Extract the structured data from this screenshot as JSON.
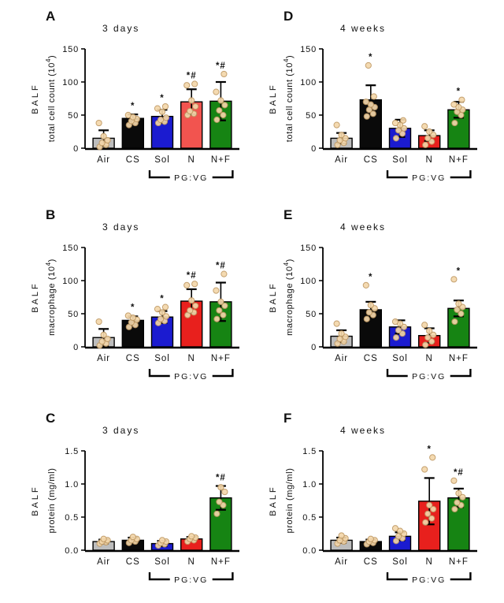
{
  "figure": {
    "background": "#ffffff",
    "point_style": {
      "fill": "#f4d7ab",
      "stroke": "#bf9963"
    },
    "axis_color": "#000000",
    "group_labels": [
      "Air",
      "CS",
      "Sol",
      "N",
      "N+F"
    ]
  },
  "chart_data": [
    {
      "panel_label": "A",
      "type": "bar",
      "title": "3 days",
      "ylabel_line1": "BALF",
      "ylabel_line2": "total cell count (10",
      "ylabel_sup": "4",
      "ylabel_end": ")",
      "ylim": [
        0,
        150
      ],
      "ytick_values": [
        0,
        50,
        100,
        150
      ],
      "ytick_labels": [
        "0",
        "50",
        "100",
        "150"
      ],
      "categories": [
        "Air",
        "CS",
        "Sol",
        "N",
        "N+F"
      ],
      "group_bracket": {
        "label": "PG:VG",
        "from_index": 2,
        "to_index": 4
      },
      "bars": [
        {
          "category": "Air",
          "value": 15,
          "sd": 12,
          "color": "#bdbdbd",
          "sig": "",
          "points": [
            2,
            5,
            8,
            12,
            18,
            38
          ]
        },
        {
          "category": "CS",
          "value": 45,
          "sd": 6,
          "color": "#0a0a0a",
          "sig": "*",
          "points": [
            35,
            38,
            41,
            44,
            47,
            50
          ]
        },
        {
          "category": "Sol",
          "value": 48,
          "sd": 10,
          "color": "#1b1bd0",
          "sig": "*",
          "points": [
            38,
            40,
            43,
            46,
            55,
            60,
            63
          ]
        },
        {
          "category": "N",
          "value": 70,
          "sd": 19,
          "color": "#f2544f",
          "sig": "*#",
          "points": [
            50,
            52,
            56,
            63,
            72,
            95,
            97
          ]
        },
        {
          "category": "N+F",
          "value": 71,
          "sd": 29,
          "color": "#168413",
          "sig": "*#",
          "points": [
            43,
            50,
            57,
            65,
            72,
            85,
            112
          ]
        }
      ]
    },
    {
      "panel_label": "B",
      "type": "bar",
      "title": "3 days",
      "ylabel_line1": "BALF",
      "ylabel_line2": "macrophage (10",
      "ylabel_sup": "4",
      "ylabel_end": ")",
      "ylim": [
        0,
        150
      ],
      "ytick_values": [
        0,
        50,
        100,
        150
      ],
      "ytick_labels": [
        "0",
        "50",
        "100",
        "150"
      ],
      "categories": [
        "Air",
        "CS",
        "Sol",
        "N",
        "N+F"
      ],
      "group_bracket": {
        "label": "PG:VG",
        "from_index": 2,
        "to_index": 4
      },
      "bars": [
        {
          "category": "Air",
          "value": 14,
          "sd": 13,
          "color": "#bdbdbd",
          "sig": "",
          "points": [
            2,
            5,
            8,
            12,
            18,
            38
          ]
        },
        {
          "category": "CS",
          "value": 40,
          "sd": 6,
          "color": "#0a0a0a",
          "sig": "*",
          "points": [
            30,
            33,
            37,
            41,
            44,
            47
          ]
        },
        {
          "category": "Sol",
          "value": 45,
          "sd": 9,
          "color": "#1b1bd0",
          "sig": "*",
          "points": [
            36,
            39,
            42,
            46,
            52,
            57,
            60
          ]
        },
        {
          "category": "N",
          "value": 69,
          "sd": 18,
          "color": "#e8201d",
          "sig": "*#",
          "points": [
            48,
            52,
            55,
            62,
            70,
            93,
            95
          ]
        },
        {
          "category": "N+F",
          "value": 68,
          "sd": 29,
          "color": "#168413",
          "sig": "*#",
          "points": [
            42,
            48,
            55,
            62,
            68,
            85,
            110
          ]
        }
      ]
    },
    {
      "panel_label": "C",
      "type": "bar",
      "title": "3 days",
      "ylabel_line1": "BALF",
      "ylabel_line2": "protein (mg/ml)",
      "ylabel_sup": "",
      "ylabel_end": "",
      "ylim": [
        0,
        1.5
      ],
      "ytick_values": [
        0,
        0.5,
        1.0,
        1.5
      ],
      "ytick_labels": [
        "0.0",
        "0.5",
        "1.0",
        "1.5"
      ],
      "categories": [
        "Air",
        "CS",
        "Sol",
        "N",
        "N+F"
      ],
      "group_bracket": {
        "label": "PG:VG",
        "from_index": 2,
        "to_index": 4
      },
      "bars": [
        {
          "category": "Air",
          "value": 0.13,
          "sd": 0.03,
          "color": "#bdbdbd",
          "sig": "",
          "points": [
            0.1,
            0.12,
            0.13,
            0.15,
            0.17
          ]
        },
        {
          "category": "CS",
          "value": 0.15,
          "sd": 0.04,
          "color": "#0a0a0a",
          "sig": "",
          "points": [
            0.11,
            0.13,
            0.15,
            0.17,
            0.2
          ]
        },
        {
          "category": "Sol",
          "value": 0.1,
          "sd": 0.04,
          "color": "#1b1bd0",
          "sig": "",
          "points": [
            0.07,
            0.09,
            0.11,
            0.13,
            0.15
          ]
        },
        {
          "category": "N",
          "value": 0.17,
          "sd": 0.03,
          "color": "#e8201d",
          "sig": "",
          "points": [
            0.13,
            0.15,
            0.17,
            0.19,
            0.21
          ]
        },
        {
          "category": "N+F",
          "value": 0.79,
          "sd": 0.18,
          "color": "#168413",
          "sig": "*#",
          "points": [
            0.55,
            0.68,
            0.73,
            0.88,
            0.95
          ]
        }
      ]
    },
    {
      "panel_label": "D",
      "type": "bar",
      "title": "4 weeks",
      "ylabel_line1": "BALF",
      "ylabel_line2": "total cell count (10",
      "ylabel_sup": "4",
      "ylabel_end": ")",
      "ylim": [
        0,
        150
      ],
      "ytick_values": [
        0,
        50,
        100,
        150
      ],
      "ytick_labels": [
        "0",
        "50",
        "100",
        "150"
      ],
      "categories": [
        "Air",
        "CS",
        "Sol",
        "N",
        "N+F"
      ],
      "group_bracket": {
        "label": "PG:VG",
        "from_index": 2,
        "to_index": 4
      },
      "bars": [
        {
          "category": "Air",
          "value": 15,
          "sd": 8,
          "color": "#bdbdbd",
          "sig": "",
          "points": [
            5,
            8,
            12,
            15,
            20,
            35
          ]
        },
        {
          "category": "CS",
          "value": 73,
          "sd": 22,
          "color": "#0a0a0a",
          "sig": "*",
          "points": [
            48,
            52,
            58,
            62,
            66,
            70,
            78,
            125
          ]
        },
        {
          "category": "Sol",
          "value": 30,
          "sd": 13,
          "color": "#1b1bd0",
          "sig": "",
          "points": [
            15,
            22,
            27,
            30,
            35,
            38,
            42
          ]
        },
        {
          "category": "N",
          "value": 19,
          "sd": 8,
          "color": "#e8201d",
          "sig": "",
          "points": [
            5,
            10,
            15,
            20,
            25,
            33
          ]
        },
        {
          "category": "N+F",
          "value": 58,
          "sd": 12,
          "color": "#168413",
          "sig": "*",
          "points": [
            38,
            50,
            55,
            58,
            62,
            66,
            73
          ]
        }
      ]
    },
    {
      "panel_label": "E",
      "type": "bar",
      "title": "4 weeks",
      "ylabel_line1": "BALF",
      "ylabel_line2": "macrophage (10",
      "ylabel_sup": "4",
      "ylabel_end": ")",
      "ylim": [
        0,
        150
      ],
      "ytick_values": [
        0,
        50,
        100,
        150
      ],
      "ytick_labels": [
        "0",
        "50",
        "100",
        "150"
      ],
      "categories": [
        "Air",
        "CS",
        "Sol",
        "N",
        "N+F"
      ],
      "group_bracket": {
        "label": "PG:VG",
        "from_index": 2,
        "to_index": 4
      },
      "bars": [
        {
          "category": "Air",
          "value": 16,
          "sd": 9,
          "color": "#bdbdbd",
          "sig": "",
          "points": [
            5,
            8,
            12,
            15,
            20,
            35
          ]
        },
        {
          "category": "CS",
          "value": 56,
          "sd": 12,
          "color": "#0a0a0a",
          "sig": "*",
          "points": [
            42,
            48,
            52,
            58,
            63,
            93
          ]
        },
        {
          "category": "Sol",
          "value": 30,
          "sd": 10,
          "color": "#1b1bd0",
          "sig": "",
          "points": [
            14,
            20,
            25,
            30,
            35,
            38
          ]
        },
        {
          "category": "N",
          "value": 17,
          "sd": 11,
          "color": "#e8201d",
          "sig": "",
          "points": [
            3,
            8,
            14,
            18,
            24,
            33
          ]
        },
        {
          "category": "N+F",
          "value": 58,
          "sd": 12,
          "color": "#168413",
          "sig": "*",
          "points": [
            38,
            50,
            56,
            60,
            65,
            102
          ]
        }
      ]
    },
    {
      "panel_label": "F",
      "type": "bar",
      "title": "4 weeks",
      "ylabel_line1": "BALF",
      "ylabel_line2": "protein (mg/ml)",
      "ylabel_sup": "",
      "ylabel_end": "",
      "ylim": [
        0,
        1.5
      ],
      "ytick_values": [
        0,
        0.5,
        1.0,
        1.5
      ],
      "ytick_labels": [
        "0.0",
        "0.5",
        "1.0",
        "1.5"
      ],
      "categories": [
        "Air",
        "CS",
        "Sol",
        "N",
        "N+F"
      ],
      "group_bracket": {
        "label": "PG:VG",
        "from_index": 2,
        "to_index": 4
      },
      "bars": [
        {
          "category": "Air",
          "value": 0.15,
          "sd": 0.04,
          "color": "#bdbdbd",
          "sig": "",
          "points": [
            0.1,
            0.13,
            0.15,
            0.18,
            0.22
          ]
        },
        {
          "category": "CS",
          "value": 0.13,
          "sd": 0.03,
          "color": "#0a0a0a",
          "sig": "",
          "points": [
            0.09,
            0.11,
            0.13,
            0.15,
            0.17
          ]
        },
        {
          "category": "Sol",
          "value": 0.21,
          "sd": 0.06,
          "color": "#1b1bd0",
          "sig": "",
          "points": [
            0.14,
            0.18,
            0.21,
            0.25,
            0.29,
            0.33
          ]
        },
        {
          "category": "N",
          "value": 0.74,
          "sd": 0.35,
          "color": "#e8201d",
          "sig": "*",
          "points": [
            0.42,
            0.48,
            0.55,
            0.62,
            0.68,
            1.22,
            1.4
          ]
        },
        {
          "category": "N+F",
          "value": 0.79,
          "sd": 0.14,
          "color": "#168413",
          "sig": "*#",
          "points": [
            0.62,
            0.68,
            0.72,
            0.8,
            0.86,
            1.05
          ]
        }
      ]
    }
  ]
}
